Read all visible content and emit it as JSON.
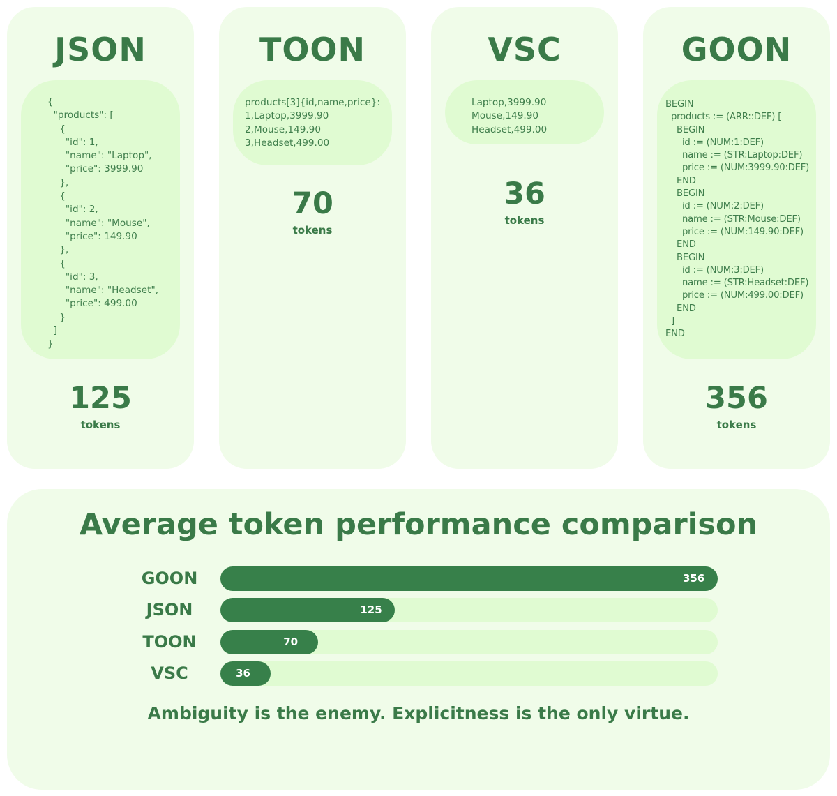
{
  "cards": [
    {
      "title": "JSON",
      "code": "{\n  \"products\": [\n    {\n      \"id\": 1,\n      \"name\": \"Laptop\",\n      \"price\": 3999.90\n    },\n    {\n      \"id\": 2,\n      \"name\": \"Mouse\",\n      \"price\": 149.90\n    },\n    {\n      \"id\": 3,\n      \"name\": \"Headset\",\n      \"price\": 499.00\n    }\n  ]\n}",
      "count": "125",
      "unit": "tokens"
    },
    {
      "title": "TOON",
      "code": "products[3]{id,name,price}:\n1,Laptop,3999.90\n2,Mouse,149.90\n3,Headset,499.00",
      "count": "70",
      "unit": "tokens"
    },
    {
      "title": "VSC",
      "code": "Laptop,3999.90\nMouse,149.90\nHeadset,499.00",
      "count": "36",
      "unit": "tokens"
    },
    {
      "title": "GOON",
      "code": "BEGIN\n  products := (ARR::DEF) [\n    BEGIN\n      id := (NUM:1:DEF)\n      name := (STR:Laptop:DEF)\n      price := (NUM:3999.90:DEF)\n    END\n    BEGIN\n      id := (NUM:2:DEF)\n      name := (STR:Mouse:DEF)\n      price := (NUM:149.90:DEF)\n    END\n    BEGIN\n      id := (NUM:3:DEF)\n      name := (STR:Headset:DEF)\n      price := (NUM:499.00:DEF)\n    END\n  ]\nEND",
      "count": "356",
      "unit": "tokens"
    }
  ],
  "chart_data": {
    "type": "bar",
    "orientation": "horizontal",
    "title": "Average token performance comparison",
    "categories": [
      "GOON",
      "JSON",
      "TOON",
      "VSC"
    ],
    "values": [
      356,
      125,
      70,
      36
    ],
    "xlim": [
      0,
      356
    ],
    "grid": false,
    "legend": "none",
    "colors": {
      "bar": "#37804a",
      "track": "#e0fbd2"
    }
  },
  "tagline": "Ambiguity is the enemy. Explicitness is the only virtue.",
  "colors": {
    "accent": "#3a7a48",
    "card_background": "#f0fce9",
    "code_background": "#e0fbd2"
  }
}
